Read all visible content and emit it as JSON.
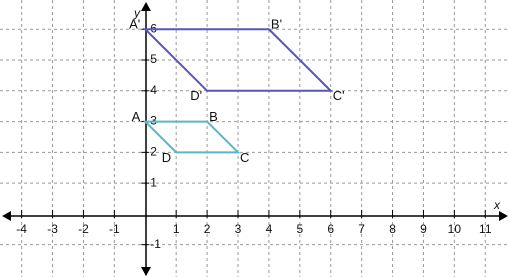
{
  "chart_data": {
    "type": "coordinate-plane",
    "xlabel": "x",
    "ylabel": "y",
    "xlim": [
      -4.7,
      11.8
    ],
    "ylim": [
      -2.05,
      6.95
    ],
    "xticks": [
      -4,
      -3,
      -2,
      -1,
      1,
      2,
      3,
      4,
      5,
      6,
      7,
      8,
      9,
      10,
      11
    ],
    "yticks": [
      -1,
      1,
      2,
      3,
      4,
      5,
      6
    ],
    "grid": true,
    "polygons": [
      {
        "color": "#5656bd",
        "labels": [
          "A'",
          "B'",
          "C'",
          "D'"
        ],
        "x": [
          0,
          4,
          6,
          2
        ],
        "y": [
          6,
          6,
          4,
          4
        ]
      },
      {
        "color": "#56b8c9",
        "labels": [
          "A",
          "B",
          "C",
          "D"
        ],
        "x": [
          0,
          2,
          3,
          1
        ],
        "y": [
          3,
          3,
          2,
          2
        ]
      }
    ]
  }
}
